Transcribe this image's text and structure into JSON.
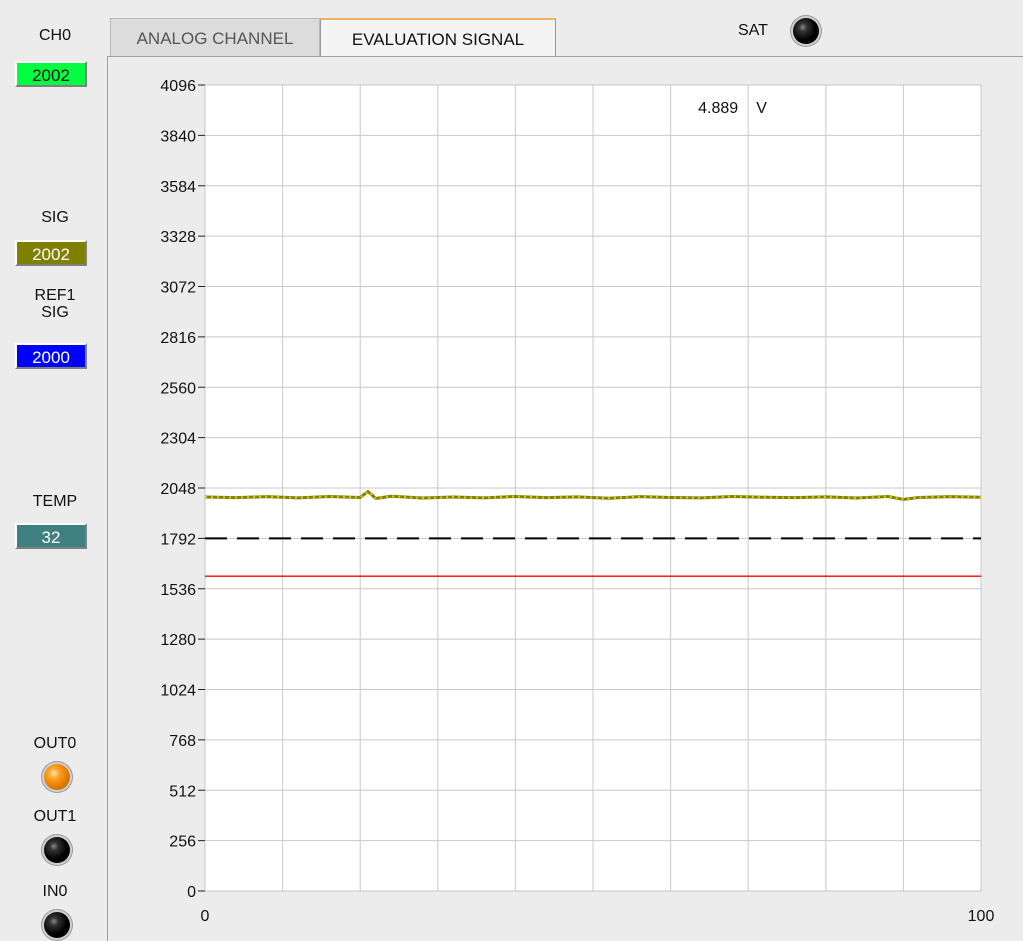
{
  "left": {
    "ch0": {
      "label": "CH0",
      "value": "2002",
      "color": "#00ff40"
    },
    "sig": {
      "label": "SIG",
      "value": "2002",
      "color": "#808000"
    },
    "ref1sig": {
      "label_line1": "REF1",
      "label_line2": "SIG",
      "value": "2000",
      "color": "#0000ff"
    },
    "temp": {
      "label": "TEMP",
      "value": "32",
      "color": "#3f8080"
    },
    "out0": {
      "label": "OUT0",
      "state": "on",
      "led_color": "#ff9900"
    },
    "out1": {
      "label": "OUT1",
      "state": "off"
    },
    "in0": {
      "label": "IN0",
      "state": "off"
    }
  },
  "tabs": [
    {
      "label": "ANALOG CHANNEL",
      "active": false
    },
    {
      "label": "EVALUATION SIGNAL",
      "active": true
    }
  ],
  "sat": {
    "label": "SAT",
    "state": "off"
  },
  "chart_data": {
    "type": "line",
    "title": "",
    "xlabel": "",
    "ylabel": "",
    "xlim": [
      0,
      100
    ],
    "ylim": [
      0,
      4096
    ],
    "x_ticks": [
      "0",
      "100"
    ],
    "y_ticks": [
      0,
      256,
      512,
      768,
      1024,
      1280,
      1536,
      1792,
      2048,
      2304,
      2560,
      2816,
      3072,
      3328,
      3584,
      3840,
      4096
    ],
    "x_grid_count": 10,
    "grid": true,
    "annotation": {
      "value": "4.889",
      "unit": "V"
    },
    "series": [
      {
        "style": "olive-yellow-dotted",
        "color": "#808000",
        "dot_color": "#e0d000",
        "x": [
          0,
          4,
          8,
          12,
          16,
          20,
          21,
          22,
          24,
          28,
          32,
          36,
          40,
          44,
          48,
          52,
          56,
          60,
          64,
          68,
          72,
          76,
          80,
          84,
          88,
          90,
          92,
          96,
          100
        ],
        "y": [
          2002,
          1999,
          2004,
          1998,
          2005,
          2000,
          2030,
          1995,
          2006,
          1997,
          2002,
          1998,
          2005,
          1999,
          2003,
          1996,
          2004,
          2000,
          1998,
          2005,
          2001,
          1999,
          2003,
          1997,
          2005,
          1990,
          2000,
          2004,
          2001
        ]
      },
      {
        "style": "dashed",
        "color": "#000000",
        "y_const": 1792
      },
      {
        "style": "solid",
        "color": "#ff0000",
        "y_const": 1600
      }
    ]
  }
}
